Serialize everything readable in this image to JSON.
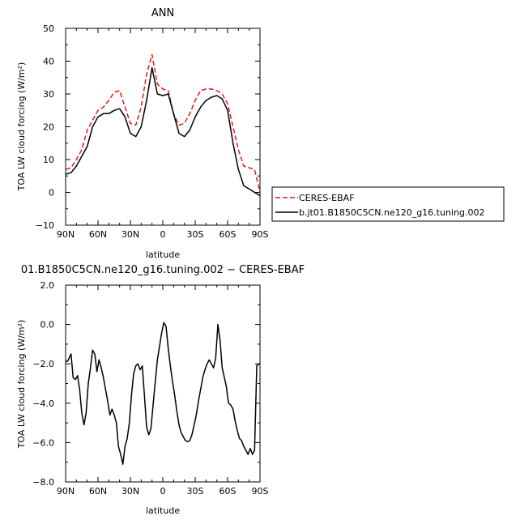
{
  "chart_data": [
    {
      "type": "line",
      "title": "ANN",
      "xlabel": "latitude",
      "ylabel": "TOA LW cloud forcing (W/m²)",
      "xlim": [
        90,
        -90
      ],
      "ylim": [
        -10,
        50
      ],
      "x_ticks": [
        90,
        60,
        30,
        0,
        -30,
        -60,
        -90
      ],
      "x_tick_labels": [
        "90N",
        "60N",
        "30N",
        "0",
        "30S",
        "60S",
        "90S"
      ],
      "y_ticks": [
        -10,
        0,
        10,
        20,
        30,
        40,
        50
      ],
      "y_tick_labels": [
        "−10",
        "0",
        "10",
        "20",
        "30",
        "40",
        "50"
      ],
      "legend_position": "right",
      "series": [
        {
          "name": "CERES-EBAF",
          "color": "#e41a1c",
          "dash": "dashed",
          "x": [
            90,
            85,
            80,
            75,
            70,
            65,
            60,
            55,
            50,
            45,
            40,
            35,
            30,
            25,
            20,
            15,
            10,
            5,
            0,
            -5,
            -10,
            -15,
            -20,
            -25,
            -30,
            -35,
            -40,
            -45,
            -50,
            -55,
            -60,
            -65,
            -70,
            -75,
            -80,
            -85,
            -90
          ],
          "y": [
            7,
            7.5,
            10,
            13,
            19,
            22,
            25,
            26,
            28,
            30.5,
            31,
            26,
            21,
            20.5,
            26,
            36,
            42,
            33,
            31.5,
            31,
            24,
            20.5,
            21,
            24,
            28,
            31,
            31.5,
            31.5,
            31,
            30,
            27,
            20,
            13,
            8,
            7.5,
            7,
            0
          ]
        },
        {
          "name": "b.jt01.B1850C5CN.ne120_g16.tuning.002",
          "color": "#000000",
          "dash": "solid",
          "x": [
            90,
            85,
            80,
            75,
            70,
            65,
            60,
            55,
            50,
            45,
            40,
            35,
            30,
            25,
            20,
            15,
            10,
            5,
            0,
            -5,
            -10,
            -15,
            -20,
            -25,
            -30,
            -35,
            -40,
            -45,
            -50,
            -55,
            -60,
            -65,
            -70,
            -75,
            -80,
            -85,
            -90
          ],
          "y": [
            5.5,
            6,
            8,
            11,
            14,
            20,
            23,
            24,
            24,
            25,
            25.5,
            23,
            18,
            17,
            20,
            28,
            38,
            30,
            29.5,
            30,
            24,
            18,
            17,
            19,
            23,
            26,
            28,
            29,
            29.5,
            28.5,
            25,
            15,
            7,
            2,
            1,
            0,
            -1
          ]
        }
      ]
    },
    {
      "type": "line",
      "title": "01.B1850C5CN.ne120_g16.tuning.002 − CERES-EBAF",
      "xlabel": "latitude",
      "ylabel": "TOA LW cloud forcing (W/m²)",
      "xlim": [
        90,
        -90
      ],
      "ylim": [
        -8,
        2
      ],
      "x_ticks": [
        90,
        60,
        30,
        0,
        -30,
        -60,
        -90
      ],
      "x_tick_labels": [
        "90N",
        "60N",
        "30N",
        "0",
        "30S",
        "60S",
        "90S"
      ],
      "y_ticks": [
        -8,
        -6,
        -4,
        -2,
        0,
        2
      ],
      "y_tick_labels": [
        "−8.0",
        "−6.0",
        "−4.0",
        "−2.0",
        "0.0",
        "2.0"
      ],
      "series": [
        {
          "color": "#000000",
          "dash": "solid",
          "x": [
            90,
            88,
            85,
            83,
            81,
            79,
            77,
            75,
            73,
            71,
            69,
            67,
            65,
            63,
            61,
            59,
            57,
            55,
            53,
            51,
            49,
            47,
            45,
            43,
            41,
            39,
            37,
            35,
            33,
            31,
            29,
            27,
            25,
            23,
            21,
            19,
            17,
            15,
            13,
            11,
            9,
            7,
            5,
            3,
            1,
            -1,
            -3,
            -5,
            -7,
            -9,
            -11,
            -13,
            -15,
            -17,
            -19,
            -21,
            -23,
            -25,
            -27,
            -29,
            -31,
            -33,
            -35,
            -37,
            -39,
            -41,
            -43,
            -45,
            -47,
            -49,
            -51,
            -53,
            -55,
            -57,
            -59,
            -60,
            -61,
            -63,
            -65,
            -67,
            -69,
            -71,
            -73,
            -75,
            -77,
            -79,
            -81,
            -83,
            -85,
            -87,
            -89,
            -90
          ],
          "y": [
            -1.9,
            -1.85,
            -1.5,
            -2.7,
            -2.8,
            -2.6,
            -3.3,
            -4.5,
            -5.1,
            -4.5,
            -3.0,
            -2.2,
            -1.3,
            -1.5,
            -2.4,
            -1.8,
            -2.2,
            -2.7,
            -3.3,
            -3.9,
            -4.6,
            -4.3,
            -4.6,
            -5.0,
            -6.2,
            -6.6,
            -7.1,
            -6.2,
            -5.8,
            -5.0,
            -3.6,
            -2.5,
            -2.1,
            -2.0,
            -2.3,
            -2.1,
            -3.6,
            -5.2,
            -5.6,
            -5.3,
            -4.1,
            -2.9,
            -1.8,
            -1.1,
            -0.4,
            0.1,
            -0.1,
            -1.2,
            -2.1,
            -2.9,
            -3.6,
            -4.4,
            -5.1,
            -5.5,
            -5.7,
            -5.9,
            -5.95,
            -5.9,
            -5.6,
            -5.1,
            -4.6,
            -3.9,
            -3.3,
            -2.7,
            -2.3,
            -2.0,
            -1.8,
            -2.0,
            -2.2,
            -1.7,
            0.0,
            -0.8,
            -2.2,
            -2.7,
            -3.2,
            -3.7,
            -4.0,
            -4.1,
            -4.3,
            -4.9,
            -5.4,
            -5.8,
            -5.9,
            -6.2,
            -6.4,
            -6.6,
            -6.3,
            -6.6,
            -6.4,
            -2.1,
            -2.0,
            -2.0
          ]
        }
      ]
    }
  ]
}
